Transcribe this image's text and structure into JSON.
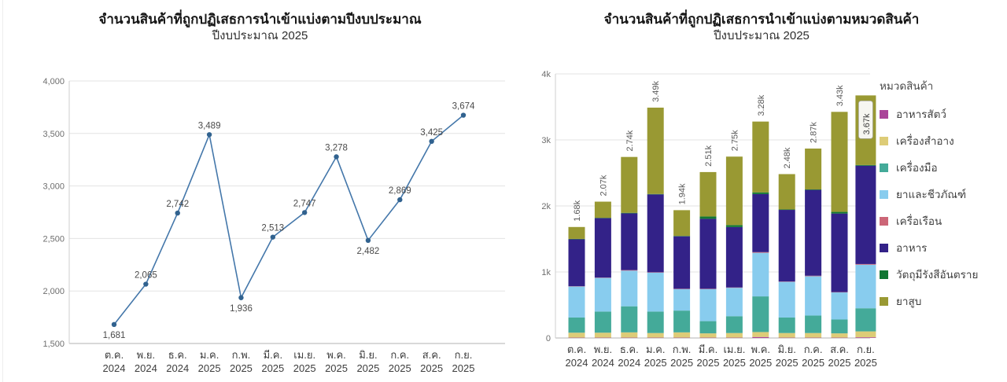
{
  "page": {
    "background": "#ffffff"
  },
  "theme": {
    "grid_color": "#e3e3e3",
    "baseline_color": "#b3b3b3",
    "axis_color": "#cfcfcf",
    "ytick_text": "#6e6e6e",
    "xtick_text": "#3d3d3d",
    "value_label_text": "#4a4a4a",
    "bar_total_text": "#5a5a5a",
    "inside_label_bg": "#f6f6f1",
    "inside_label_border": "#a9a99d",
    "inside_label_text": "#3d3d3d"
  },
  "chart_data": [
    {
      "type": "line",
      "title": "จำนวนสินค้าที่ถูกปฏิเสธการนำเข้าแบ่งตามปีงบประมาณ",
      "subtitle": "ปีงบประมาณ 2025",
      "categories": [
        {
          "month": "ต.ค.",
          "year": "2024"
        },
        {
          "month": "พ.ย.",
          "year": "2024"
        },
        {
          "month": "ธ.ค.",
          "year": "2024"
        },
        {
          "month": "ม.ค.",
          "year": "2025"
        },
        {
          "month": "ก.พ.",
          "year": "2025"
        },
        {
          "month": "มี.ค.",
          "year": "2025"
        },
        {
          "month": "เม.ย.",
          "year": "2025"
        },
        {
          "month": "พ.ค.",
          "year": "2025"
        },
        {
          "month": "มิ.ย.",
          "year": "2025"
        },
        {
          "month": "ก.ค.",
          "year": "2025"
        },
        {
          "month": "ส.ค.",
          "year": "2025"
        },
        {
          "month": "ก.ย.",
          "year": "2025"
        }
      ],
      "values": [
        1681,
        2065,
        2742,
        3489,
        1936,
        2513,
        2747,
        3278,
        2482,
        2869,
        3425,
        3674
      ],
      "value_labels": [
        "1,681",
        "2,065",
        "2,742",
        "3,489",
        "1,936",
        "2,513",
        "2,747",
        "3,278",
        "2,482",
        "2,869",
        "3,425",
        "3,674"
      ],
      "label_position": [
        "below",
        "above",
        "above",
        "above",
        "below",
        "above",
        "above",
        "above",
        "below",
        "above",
        "above",
        "above"
      ],
      "ylim": [
        1500,
        4000
      ],
      "ytick_step": 500,
      "ytick_labels": [
        "1,500",
        "2,000",
        "2,500",
        "3,000",
        "3,500",
        "4,000"
      ],
      "grid": true,
      "legend": false,
      "line_color": "#4477aa",
      "marker_color": "#31628f"
    },
    {
      "type": "stacked_bar",
      "title": "จำนวนสินค้าที่ถูกปฏิเสธการนำเข้าแบ่งตามหมวดสินค้า",
      "subtitle": "ปีงบประมาณ 2025",
      "legend_title": "หมวดสินค้า",
      "legend_position": "right",
      "categories": [
        {
          "month": "ต.ค.",
          "year": "2024"
        },
        {
          "month": "พ.ย.",
          "year": "2024"
        },
        {
          "month": "ธ.ค.",
          "year": "2024"
        },
        {
          "month": "ม.ค.",
          "year": "2025"
        },
        {
          "month": "ก.พ.",
          "year": "2025"
        },
        {
          "month": "มี.ค.",
          "year": "2025"
        },
        {
          "month": "เม.ย.",
          "year": "2025"
        },
        {
          "month": "พ.ค.",
          "year": "2025"
        },
        {
          "month": "มิ.ย.",
          "year": "2025"
        },
        {
          "month": "ก.ค.",
          "year": "2025"
        },
        {
          "month": "ส.ค.",
          "year": "2025"
        },
        {
          "month": "ก.ย.",
          "year": "2025"
        }
      ],
      "series": [
        {
          "name": "อาหารสัตว์",
          "color": "#AA4499",
          "values": [
            5,
            5,
            5,
            5,
            5,
            5,
            5,
            15,
            5,
            5,
            5,
            10
          ]
        },
        {
          "name": "เครื่องสำอาง",
          "color": "#DDCC77",
          "values": [
            75,
            75,
            80,
            70,
            80,
            65,
            70,
            75,
            70,
            70,
            65,
            90
          ]
        },
        {
          "name": "เครื่องมือ",
          "color": "#44AA99",
          "values": [
            230,
            320,
            395,
            325,
            330,
            185,
            255,
            540,
            235,
            265,
            210,
            350
          ]
        },
        {
          "name": "ยาและชีวภัณฑ์",
          "color": "#88CCEE",
          "values": [
            470,
            510,
            540,
            590,
            325,
            485,
            430,
            660,
            540,
            595,
            410,
            660
          ]
        },
        {
          "name": "เครื่อเรือน",
          "color": "#CC6677",
          "values": [
            5,
            5,
            8,
            5,
            5,
            5,
            5,
            10,
            5,
            8,
            5,
            10
          ]
        },
        {
          "name": "อาหาร",
          "color": "#332288",
          "values": [
            710,
            900,
            860,
            1180,
            795,
            1060,
            915,
            880,
            1085,
            1300,
            1190,
            1490
          ]
        },
        {
          "name": "วัตถุมีรังสีอันตราย",
          "color": "#117733",
          "values": [
            6,
            5,
            8,
            6,
            6,
            35,
            30,
            25,
            7,
            7,
            25,
            10
          ]
        },
        {
          "name": "ยาสูบ",
          "color": "#999933",
          "values": [
            180,
            245,
            846,
            1308,
            390,
            673,
            1037,
            1073,
            535,
            619,
            1515,
            1054
          ]
        }
      ],
      "totals": [
        1681,
        2065,
        2742,
        3489,
        1936,
        2513,
        2747,
        3278,
        2482,
        2869,
        3425,
        3674
      ],
      "total_labels": [
        "1.68k",
        "2.07k",
        "2.74k",
        "3.49k",
        "1.94k",
        "2.51k",
        "2.75k",
        "3.28k",
        "2.48k",
        "2.87k",
        "3.43k",
        "3.67k"
      ],
      "highlighted_bar_index": 11,
      "ylim": [
        0,
        4000
      ],
      "ytick_labels": [
        "0",
        "1k",
        "2k",
        "3k",
        "4k"
      ],
      "grid": true
    }
  ]
}
